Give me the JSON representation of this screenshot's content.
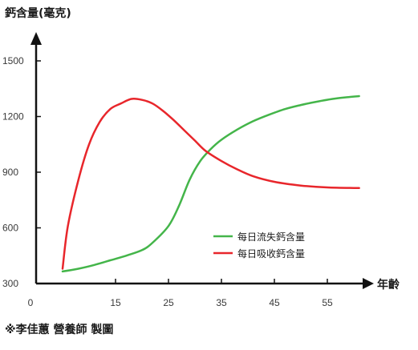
{
  "chart_data": {
    "type": "line",
    "title": "",
    "ylabel": "鈣含量(毫克)",
    "xlabel": "年齡",
    "ylim": [
      300,
      1500
    ],
    "yticks": [
      300,
      600,
      900,
      1200,
      1500
    ],
    "yticklabels": [
      "300",
      "600",
      "900",
      "1200",
      "1500"
    ],
    "xlim": [
      0,
      62
    ],
    "xticks": [
      0,
      15,
      25,
      35,
      45,
      55
    ],
    "xticklabels": [
      "0",
      "15",
      "25",
      "35",
      "45",
      "55"
    ],
    "grid": false,
    "legend_position": "center-right",
    "series": [
      {
        "name": "每日流失鈣含量",
        "color": "#44b54a",
        "x": [
          5,
          8,
          11,
          14,
          17,
          20,
          22,
          25,
          27,
          29,
          31,
          33,
          35,
          38,
          41,
          44,
          47,
          50,
          53,
          56,
          59,
          61
        ],
        "y": [
          365,
          380,
          400,
          425,
          450,
          480,
          520,
          610,
          720,
          860,
          960,
          1025,
          1075,
          1130,
          1175,
          1210,
          1240,
          1262,
          1280,
          1295,
          1305,
          1310
        ]
      },
      {
        "name": "每日吸收鈣含量",
        "color": "#e8262b",
        "x": [
          5,
          6,
          8,
          10,
          12,
          14,
          16,
          18,
          20,
          22,
          24,
          26,
          28,
          30,
          32,
          35,
          38,
          41,
          45,
          50,
          55,
          60,
          61
        ],
        "y": [
          380,
          610,
          860,
          1050,
          1170,
          1240,
          1270,
          1295,
          1290,
          1270,
          1230,
          1180,
          1125,
          1070,
          1015,
          960,
          915,
          878,
          848,
          828,
          818,
          815,
          815
        ]
      }
    ]
  },
  "credit": "※李佳蕙 營養師 製圖"
}
